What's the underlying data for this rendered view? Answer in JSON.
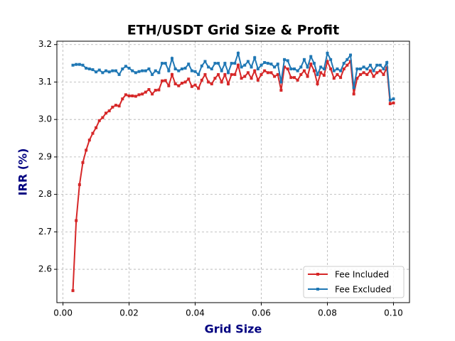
{
  "chart_data": {
    "type": "line",
    "title": "ETH/USDT Grid Size & Profit",
    "xlabel": "Grid Size",
    "ylabel": "IRR (%)",
    "x": [
      0.003,
      0.004,
      0.005,
      0.006,
      0.007,
      0.008,
      0.009,
      0.01,
      0.011,
      0.012,
      0.013,
      0.014,
      0.015,
      0.016,
      0.017,
      0.018,
      0.019,
      0.02,
      0.021,
      0.022,
      0.023,
      0.024,
      0.025,
      0.026,
      0.027,
      0.028,
      0.029,
      0.03,
      0.031,
      0.032,
      0.033,
      0.034,
      0.035,
      0.036,
      0.037,
      0.038,
      0.039,
      0.04,
      0.041,
      0.042,
      0.043,
      0.044,
      0.045,
      0.046,
      0.047,
      0.048,
      0.049,
      0.05,
      0.051,
      0.052,
      0.053,
      0.054,
      0.055,
      0.056,
      0.057,
      0.058,
      0.059,
      0.06,
      0.061,
      0.062,
      0.063,
      0.064,
      0.065,
      0.066,
      0.067,
      0.068,
      0.069,
      0.07,
      0.071,
      0.072,
      0.073,
      0.074,
      0.075,
      0.076,
      0.077,
      0.078,
      0.079,
      0.08,
      0.081,
      0.082,
      0.083,
      0.084,
      0.085,
      0.086,
      0.087,
      0.088,
      0.089,
      0.09,
      0.091,
      0.092,
      0.093,
      0.094,
      0.095,
      0.096,
      0.097,
      0.098,
      0.099,
      0.1
    ],
    "series": [
      {
        "name": "Fee Included",
        "color": "#d62728",
        "values": [
          2.543,
          2.73,
          2.826,
          2.885,
          2.918,
          2.945,
          2.963,
          2.978,
          2.997,
          3.005,
          3.017,
          3.023,
          3.033,
          3.038,
          3.036,
          3.055,
          3.066,
          3.063,
          3.063,
          3.062,
          3.066,
          3.068,
          3.073,
          3.08,
          3.068,
          3.078,
          3.079,
          3.103,
          3.104,
          3.09,
          3.12,
          3.095,
          3.09,
          3.097,
          3.1,
          3.108,
          3.088,
          3.092,
          3.083,
          3.105,
          3.12,
          3.1,
          3.095,
          3.11,
          3.12,
          3.1,
          3.12,
          3.095,
          3.12,
          3.12,
          3.145,
          3.11,
          3.115,
          3.125,
          3.11,
          3.13,
          3.105,
          3.12,
          3.13,
          3.125,
          3.125,
          3.115,
          3.12,
          3.078,
          3.14,
          3.135,
          3.112,
          3.112,
          3.105,
          3.12,
          3.13,
          3.115,
          3.148,
          3.13,
          3.095,
          3.125,
          3.118,
          3.155,
          3.135,
          3.11,
          3.12,
          3.112,
          3.135,
          3.145,
          3.155,
          3.068,
          3.11,
          3.12,
          3.125,
          3.12,
          3.13,
          3.115,
          3.125,
          3.13,
          3.12,
          3.138,
          3.042,
          3.044
        ]
      },
      {
        "name": "Fee Excluded",
        "color": "#1f77b4",
        "values": [
          3.145,
          3.147,
          3.147,
          3.145,
          3.137,
          3.135,
          3.133,
          3.127,
          3.132,
          3.125,
          3.13,
          3.127,
          3.13,
          3.13,
          3.12,
          3.135,
          3.142,
          3.137,
          3.13,
          3.125,
          3.128,
          3.13,
          3.13,
          3.135,
          3.12,
          3.13,
          3.125,
          3.15,
          3.15,
          3.13,
          3.163,
          3.135,
          3.13,
          3.135,
          3.137,
          3.148,
          3.13,
          3.128,
          3.12,
          3.143,
          3.155,
          3.14,
          3.135,
          3.15,
          3.15,
          3.13,
          3.15,
          3.125,
          3.15,
          3.15,
          3.177,
          3.14,
          3.145,
          3.155,
          3.14,
          3.165,
          3.135,
          3.145,
          3.152,
          3.15,
          3.148,
          3.14,
          3.148,
          3.1,
          3.16,
          3.157,
          3.135,
          3.135,
          3.13,
          3.14,
          3.16,
          3.14,
          3.168,
          3.15,
          3.12,
          3.14,
          3.135,
          3.177,
          3.16,
          3.13,
          3.135,
          3.13,
          3.15,
          3.16,
          3.172,
          3.085,
          3.135,
          3.135,
          3.14,
          3.135,
          3.145,
          3.13,
          3.145,
          3.145,
          3.135,
          3.152,
          3.052,
          3.055
        ]
      }
    ],
    "xlim": [
      -0.00185,
      0.10485
    ],
    "ylim": [
      2.511,
      3.209
    ],
    "xticks": [
      {
        "value": 0,
        "label": "0.00"
      },
      {
        "value": 0.02,
        "label": "0.02"
      },
      {
        "value": 0.04,
        "label": "0.04"
      },
      {
        "value": 0.06,
        "label": "0.06"
      },
      {
        "value": 0.08,
        "label": "0.08"
      },
      {
        "value": 0.1,
        "label": "0.10"
      }
    ],
    "yticks": [
      2.6,
      2.7,
      2.8,
      2.9,
      {
        "value": 3.0,
        "label": "3.0"
      },
      3.1,
      3.2
    ],
    "grid": true,
    "legend": "lower right"
  }
}
